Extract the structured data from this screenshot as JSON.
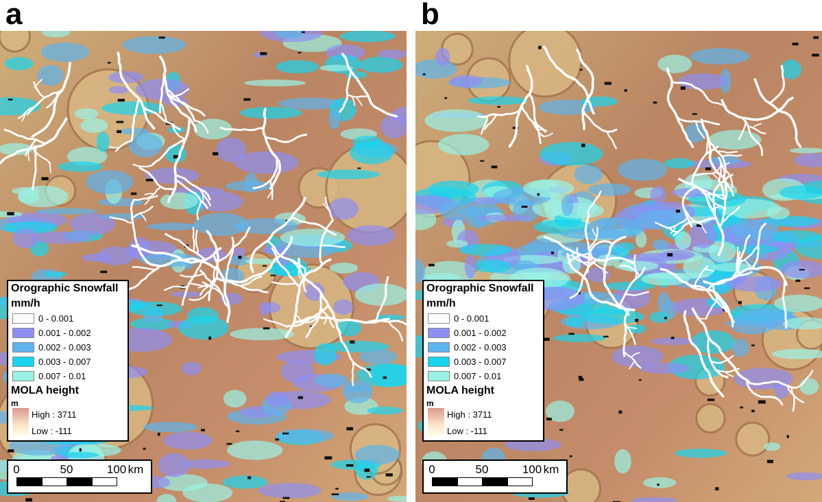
{
  "panels": [
    {
      "label": "a",
      "legend": {
        "title": "Orographic Snowfall",
        "unit": "mm/h",
        "classes": [
          {
            "label": "0 - 0.001",
            "color": "#ffffff"
          },
          {
            "label": "0.001 - 0.002",
            "color": "#8e8ff2"
          },
          {
            "label": "0.002 - 0.003",
            "color": "#5eb3ec"
          },
          {
            "label": "0.003 - 0.007",
            "color": "#19d4ee"
          },
          {
            "label": "0.007 - 0.01",
            "color": "#9af2e6"
          }
        ],
        "height_title": "MOLA height",
        "height_unit": "m",
        "high": "High : 3711",
        "low": "Low : -111"
      },
      "scale_bar": {
        "ticks": [
          "0",
          "50",
          "100"
        ],
        "unit": "km"
      }
    },
    {
      "label": "b",
      "legend": {
        "title": "Orographic Snowfall",
        "unit": "mm/h",
        "classes": [
          {
            "label": "0 - 0.001",
            "color": "#ffffff"
          },
          {
            "label": "0.001 - 0.002",
            "color": "#8e8ff2"
          },
          {
            "label": "0.002 - 0.003",
            "color": "#5eb3ec"
          },
          {
            "label": "0.003 - 0.007",
            "color": "#19d4ee"
          },
          {
            "label": "0.007 - 0.01",
            "color": "#9af2e6"
          }
        ],
        "height_title": "MOLA height",
        "height_unit": "m",
        "high": "High : 3711",
        "low": "Low : -111"
      },
      "scale_bar": {
        "ticks": [
          "0",
          "50",
          "100"
        ],
        "unit": "km"
      }
    }
  ]
}
